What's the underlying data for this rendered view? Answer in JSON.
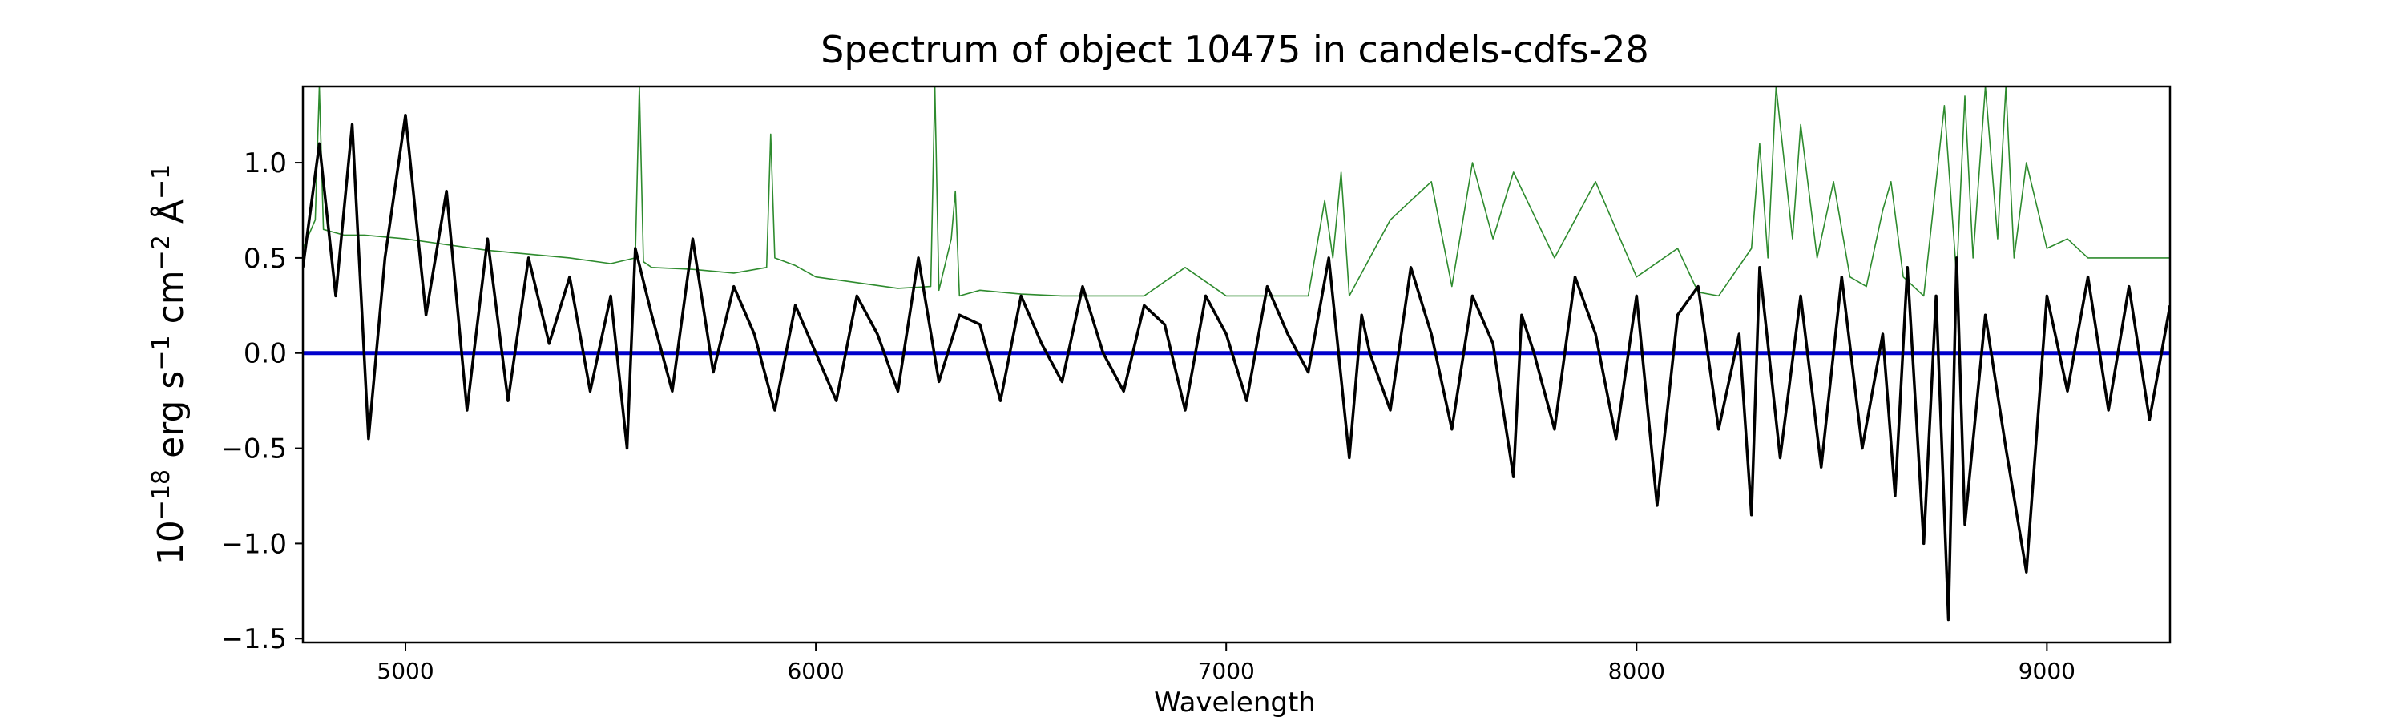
{
  "chart_data": {
    "type": "line",
    "title": "Spectrum of object 10475 in candels-cdfs-28",
    "xlabel": "Wavelength",
    "ylabel": {
      "base": "10",
      "exp_base": "−18",
      "erg": " erg s",
      "exp_s": "−1",
      "cm": " cm",
      "exp_cm": "−2",
      "ang": " Å",
      "exp_ang": "−1"
    },
    "xlim": [
      4750,
      9300
    ],
    "ylim": [
      -1.52,
      1.4
    ],
    "xticks": [
      5000,
      6000,
      7000,
      8000,
      9000
    ],
    "xtick_labels": [
      "5000",
      "6000",
      "7000",
      "8000",
      "9000"
    ],
    "yticks": [
      -1.5,
      -1.0,
      -0.5,
      0.0,
      0.5,
      1.0
    ],
    "ytick_labels": [
      "−1.5",
      "−1.0",
      "−0.5",
      "0.0",
      "0.5",
      "1.0"
    ],
    "grid": false,
    "colors": {
      "flux": "#000000",
      "error": "#2e8b2e",
      "zero_line": "#0000cc"
    },
    "series": [
      {
        "role": "flux",
        "x": [
          4750,
          4790,
          4830,
          4870,
          4910,
          4950,
          5000,
          5050,
          5100,
          5150,
          5200,
          5250,
          5300,
          5350,
          5400,
          5450,
          5500,
          5540,
          5560,
          5600,
          5650,
          5700,
          5750,
          5800,
          5850,
          5900,
          5950,
          6000,
          6050,
          6100,
          6150,
          6200,
          6250,
          6300,
          6350,
          6400,
          6450,
          6500,
          6550,
          6600,
          6650,
          6700,
          6750,
          6800,
          6850,
          6900,
          6950,
          7000,
          7050,
          7100,
          7150,
          7200,
          7250,
          7300,
          7330,
          7350,
          7400,
          7450,
          7500,
          7550,
          7600,
          7650,
          7700,
          7720,
          7750,
          7800,
          7850,
          7900,
          7950,
          8000,
          8050,
          8100,
          8150,
          8200,
          8250,
          8280,
          8300,
          8350,
          8400,
          8450,
          8500,
          8550,
          8600,
          8630,
          8660,
          8700,
          8730,
          8760,
          8780,
          8800,
          8850,
          8900,
          8950,
          9000,
          9050,
          9100,
          9150,
          9200,
          9250,
          9300
        ],
        "y": [
          0.45,
          1.1,
          0.3,
          1.2,
          -0.45,
          0.5,
          1.25,
          0.2,
          0.85,
          -0.3,
          0.6,
          -0.25,
          0.5,
          0.05,
          0.4,
          -0.2,
          0.3,
          -0.5,
          0.55,
          0.2,
          -0.2,
          0.6,
          -0.1,
          0.35,
          0.1,
          -0.3,
          0.25,
          0.0,
          -0.25,
          0.3,
          0.1,
          -0.2,
          0.5,
          -0.15,
          0.2,
          0.15,
          -0.25,
          0.3,
          0.05,
          -0.15,
          0.35,
          0.0,
          -0.2,
          0.25,
          0.15,
          -0.3,
          0.3,
          0.1,
          -0.25,
          0.35,
          0.1,
          -0.1,
          0.5,
          -0.55,
          0.2,
          0.0,
          -0.3,
          0.45,
          0.1,
          -0.4,
          0.3,
          0.05,
          -0.65,
          0.2,
          0.0,
          -0.4,
          0.4,
          0.1,
          -0.45,
          0.3,
          -0.8,
          0.2,
          0.35,
          -0.4,
          0.1,
          -0.85,
          0.45,
          -0.55,
          0.3,
          -0.6,
          0.4,
          -0.5,
          0.1,
          -0.75,
          0.45,
          -1.0,
          0.3,
          -1.4,
          0.5,
          -0.9,
          0.2,
          -0.5,
          -1.15,
          0.3,
          -0.2,
          0.4,
          -0.3,
          0.35,
          -0.35,
          0.25
        ]
      },
      {
        "role": "error",
        "x": [
          4750,
          4780,
          4790,
          4800,
          4850,
          4900,
          5000,
          5100,
          5200,
          5300,
          5400,
          5500,
          5560,
          5570,
          5580,
          5600,
          5700,
          5800,
          5880,
          5890,
          5900,
          5950,
          6000,
          6100,
          6200,
          6280,
          6290,
          6300,
          6330,
          6340,
          6350,
          6400,
          6500,
          6600,
          6700,
          6800,
          6900,
          7000,
          7100,
          7200,
          7240,
          7260,
          7280,
          7300,
          7400,
          7500,
          7550,
          7600,
          7650,
          7700,
          7800,
          7900,
          8000,
          8100,
          8150,
          8200,
          8280,
          8300,
          8320,
          8340,
          8380,
          8400,
          8440,
          8480,
          8520,
          8560,
          8600,
          8620,
          8650,
          8700,
          8750,
          8780,
          8800,
          8820,
          8850,
          8880,
          8900,
          8920,
          8950,
          9000,
          9050,
          9100,
          9150,
          9200,
          9250,
          9300
        ],
        "y": [
          0.55,
          0.7,
          1.4,
          0.65,
          0.62,
          0.62,
          0.6,
          0.57,
          0.54,
          0.52,
          0.5,
          0.47,
          0.5,
          1.4,
          0.48,
          0.45,
          0.44,
          0.42,
          0.45,
          1.15,
          0.5,
          0.46,
          0.4,
          0.37,
          0.34,
          0.35,
          1.4,
          0.33,
          0.6,
          0.85,
          0.3,
          0.33,
          0.31,
          0.3,
          0.3,
          0.3,
          0.45,
          0.3,
          0.3,
          0.3,
          0.8,
          0.5,
          0.95,
          0.3,
          0.7,
          0.9,
          0.35,
          1.0,
          0.6,
          0.95,
          0.5,
          0.9,
          0.4,
          0.55,
          0.32,
          0.3,
          0.55,
          1.1,
          0.5,
          1.4,
          0.6,
          1.2,
          0.5,
          0.9,
          0.4,
          0.35,
          0.75,
          0.9,
          0.4,
          0.3,
          1.3,
          0.4,
          1.35,
          0.5,
          1.4,
          0.6,
          1.4,
          0.5,
          1.0,
          0.55,
          0.6,
          0.5,
          0.5,
          0.5,
          0.5,
          0.5
        ]
      },
      {
        "role": "zero",
        "y": 0.0
      }
    ]
  }
}
